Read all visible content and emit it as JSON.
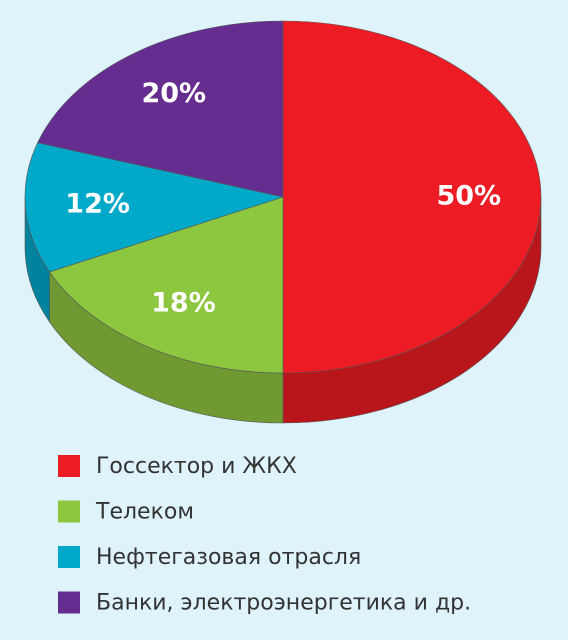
{
  "chart_data": {
    "type": "pie",
    "categories": [
      "Госсектор и ЖКХ",
      "Телеком",
      "Нефтегазовая отрасля",
      "Банки, электроэнергетика и др."
    ],
    "values": [
      50,
      18,
      12,
      20
    ],
    "value_labels": [
      "50%",
      "18%",
      "12%",
      "20%"
    ],
    "colors": [
      "#ed1c24",
      "#8dc63f",
      "#00a9c9",
      "#662d91"
    ]
  }
}
